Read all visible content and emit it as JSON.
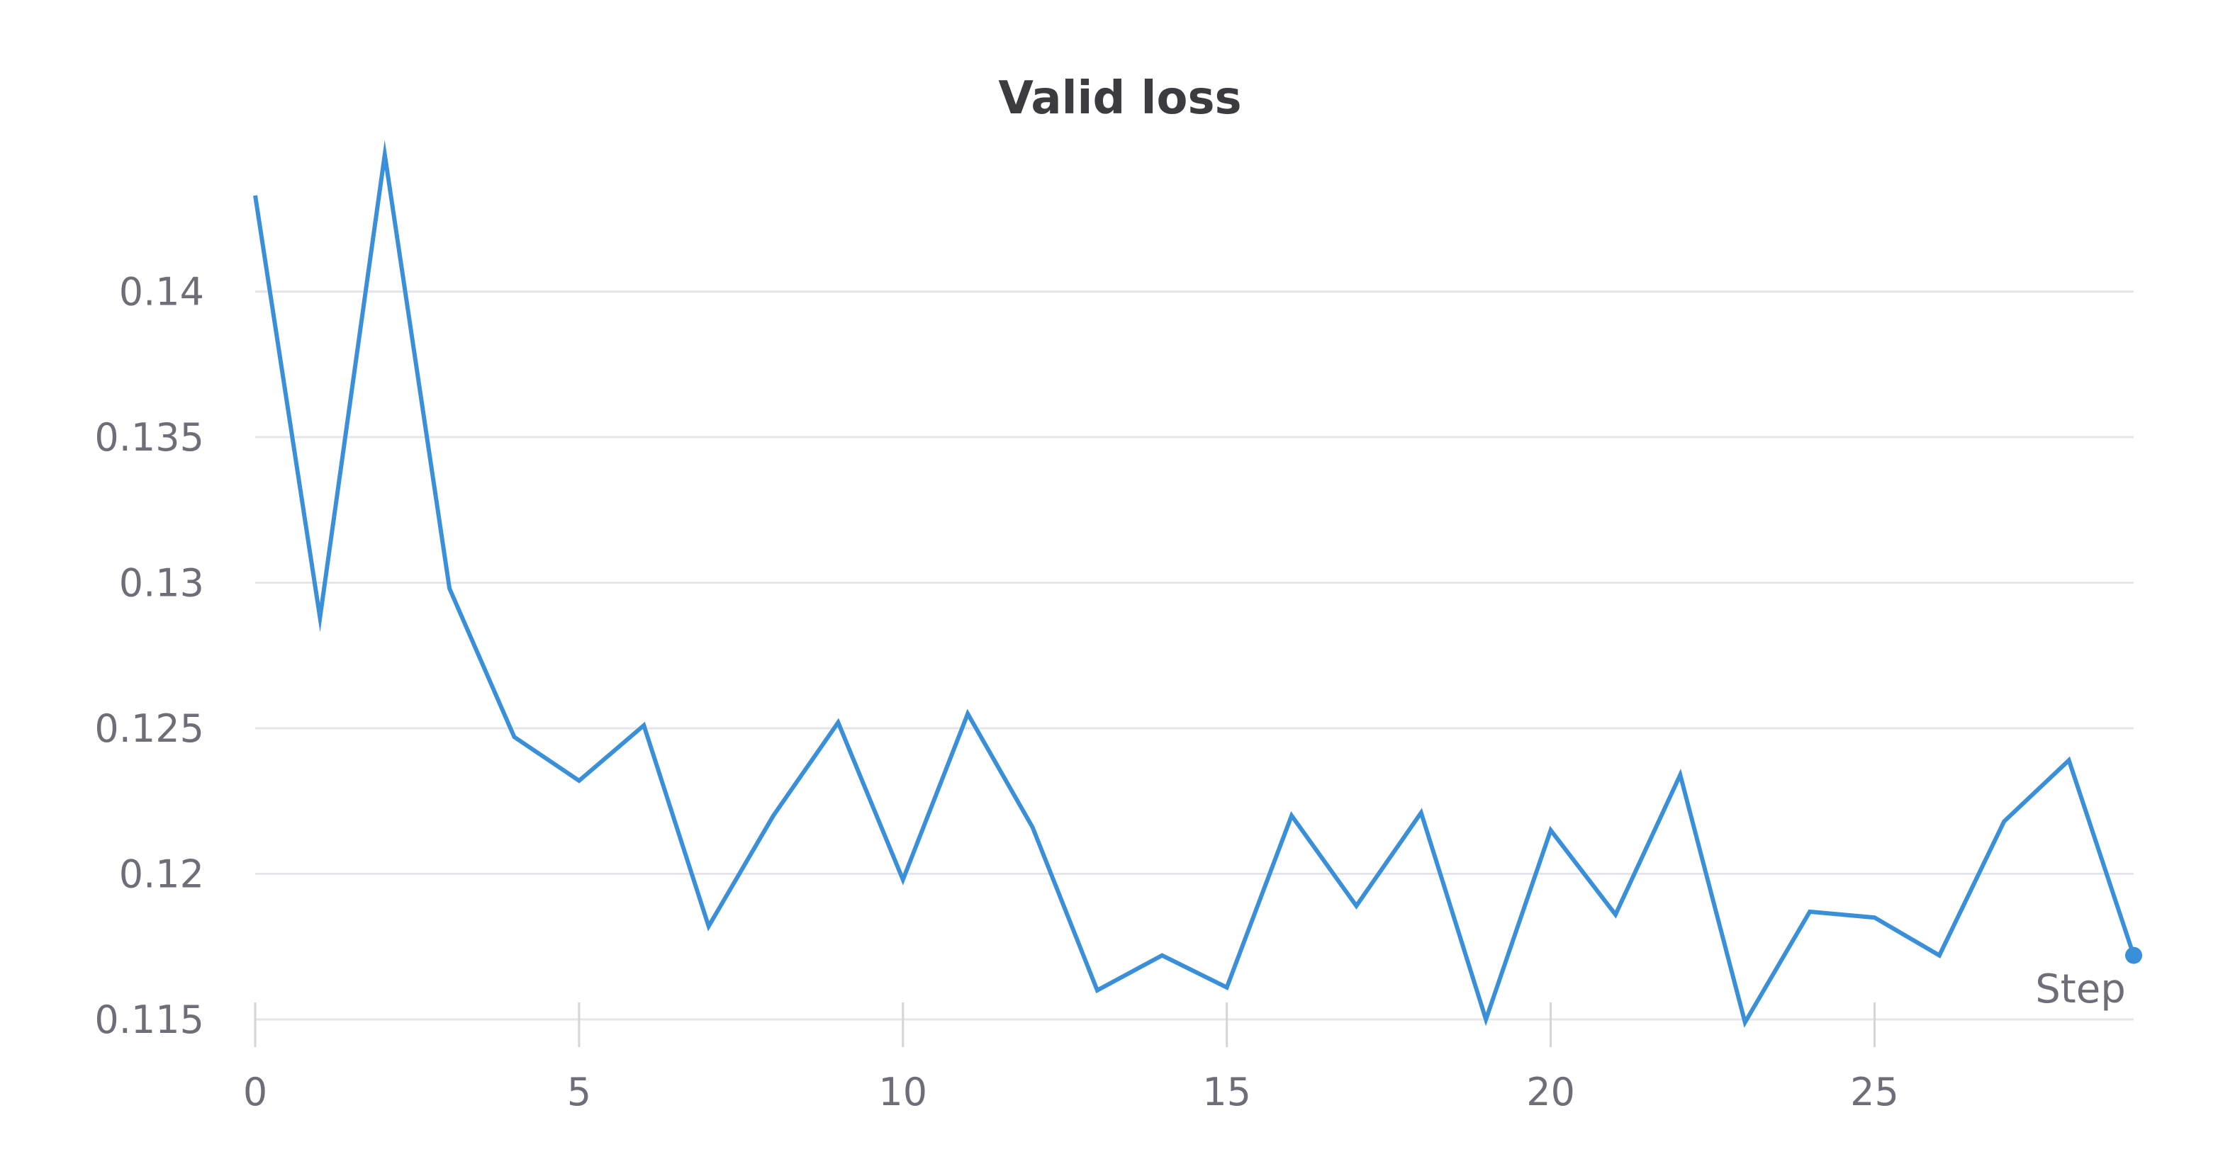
{
  "chart_data": {
    "type": "line",
    "title": "Valid loss",
    "xlabel": "Step",
    "ylabel": "",
    "x": [
      0,
      1,
      2,
      3,
      4,
      5,
      6,
      7,
      8,
      9,
      10,
      11,
      12,
      13,
      14,
      15,
      16,
      17,
      18,
      19,
      20,
      21,
      22,
      23,
      24,
      25,
      26,
      27,
      28,
      29
    ],
    "series": [
      {
        "values": [
          0.1433,
          0.1288,
          0.1447,
          0.1298,
          0.1247,
          0.1232,
          0.1251,
          0.1182,
          0.122,
          0.1252,
          0.1198,
          0.1255,
          0.1216,
          0.116,
          0.1172,
          0.1161,
          0.122,
          0.1189,
          0.1221,
          0.115,
          0.1215,
          0.1186,
          0.1234,
          0.1149,
          0.1187,
          0.1185,
          0.1172,
          0.1218,
          0.1239,
          0.1172
        ],
        "color": "#3a8fd9"
      }
    ],
    "xticks": [
      0,
      5,
      10,
      15,
      20,
      25
    ],
    "xtick_labels": [
      "0",
      "5",
      "10",
      "15",
      "20",
      "25"
    ],
    "yticks": [
      0.115,
      0.12,
      0.125,
      0.13,
      0.135,
      0.14
    ],
    "ytick_labels": [
      "0.115",
      "0.12",
      "0.125",
      "0.13",
      "0.135",
      "0.14"
    ],
    "xlim": [
      0,
      29
    ],
    "ylim": [
      0.115,
      0.145
    ],
    "grid": "horizontal",
    "colors": {
      "grid": "#e6e6ea",
      "tick": "#d4d4da",
      "line": "#3a8fd9"
    }
  }
}
